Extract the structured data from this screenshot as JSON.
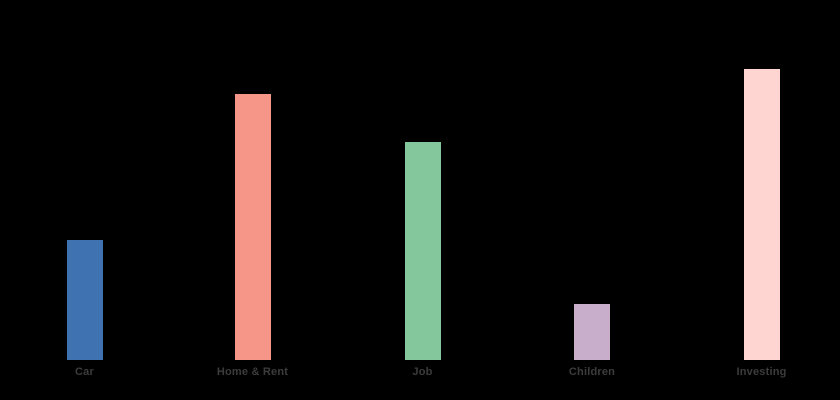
{
  "chart_data": {
    "type": "bar",
    "title": "",
    "xlabel": "",
    "ylabel": "",
    "categories": [
      "Car",
      "Home & Rent",
      "Job",
      "Children",
      "Investing"
    ],
    "values": [
      120,
      266,
      218,
      56,
      291
    ],
    "units": "relative (no value axis shown; values estimated from bar pixel heights)",
    "ylim": [
      0,
      320
    ],
    "grid": false,
    "legend": false,
    "axes_visible": false,
    "bar_colors": [
      "#3F72B0",
      "#F59689",
      "#84C79C",
      "#C8AECA",
      "#FFD5D2"
    ],
    "background_color": "#000000",
    "label_color": "#3C3C3C"
  }
}
